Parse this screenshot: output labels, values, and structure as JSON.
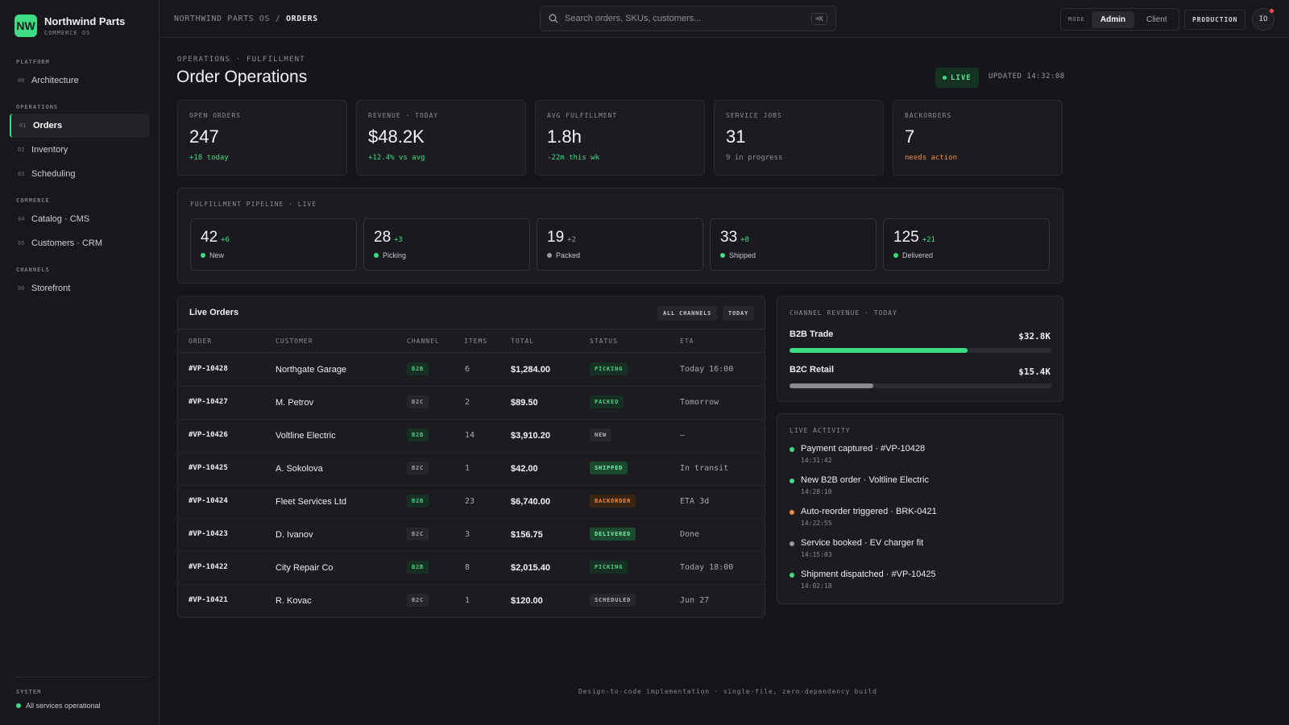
{
  "brand": {
    "initials": "NW",
    "name": "Northwind Parts",
    "subtitle": "COMMERCE OS"
  },
  "sidebar": {
    "sections": [
      {
        "label": "PLATFORM",
        "items": [
          {
            "num": "00",
            "label": "Architecture"
          }
        ]
      },
      {
        "label": "OPERATIONS",
        "items": [
          {
            "num": "01",
            "label": "Orders",
            "active": true
          },
          {
            "num": "02",
            "label": "Inventory"
          },
          {
            "num": "03",
            "label": "Scheduling"
          }
        ]
      },
      {
        "label": "COMMERCE",
        "items": [
          {
            "num": "04",
            "label": "Catalog · CMS"
          },
          {
            "num": "05",
            "label": "Customers · CRM"
          }
        ]
      },
      {
        "label": "CHANNELS",
        "items": [
          {
            "num": "06",
            "label": "Storefront"
          }
        ]
      }
    ],
    "system_label": "SYSTEM",
    "system_status": "All services operational"
  },
  "topbar": {
    "crumb_root": "NORTHWIND PARTS OS",
    "crumb_sep": "/",
    "crumb_current": "ORDERS",
    "search_placeholder": "Search orders, SKUs, customers...",
    "search_shortcut": "⌘K",
    "mode_label": "MODE",
    "mode_options": [
      "Admin",
      "Client"
    ],
    "env": "PRODUCTION",
    "avatar": "IO"
  },
  "page": {
    "eyebrow": "OPERATIONS · FULFILLMENT",
    "title": "Order Operations",
    "live": "LIVE",
    "updated": "UPDATED 14:32:08"
  },
  "kpis": [
    {
      "label": "OPEN ORDERS",
      "value": "247",
      "note": "+18 today",
      "tone": "green"
    },
    {
      "label": "REVENUE · TODAY",
      "value": "$48.2K",
      "note": "+12.4% vs avg",
      "tone": "green"
    },
    {
      "label": "AVG FULFILLMENT",
      "value": "1.8h",
      "note": "-22m this wk",
      "tone": "green"
    },
    {
      "label": "SERVICE JOBS",
      "value": "31",
      "note": "9 in progress",
      "tone": "muted"
    },
    {
      "label": "BACKORDERS",
      "value": "7",
      "note": "needs action",
      "tone": "orange"
    }
  ],
  "pipeline": {
    "title": "FULFILLMENT PIPELINE · LIVE",
    "stages": [
      {
        "value": "42",
        "delta": "+6",
        "label": "New",
        "color": "#3ddc84"
      },
      {
        "value": "28",
        "delta": "+3",
        "label": "Picking",
        "color": "#3ddc84"
      },
      {
        "value": "19",
        "delta": "+2",
        "label": "Packed",
        "color": "#9a9aa2"
      },
      {
        "value": "33",
        "delta": "+8",
        "label": "Shipped",
        "color": "#3ddc84"
      },
      {
        "value": "125",
        "delta": "+21",
        "label": "Delivered",
        "color": "#3ddc84"
      }
    ]
  },
  "orders": {
    "title": "Live Orders",
    "filters": [
      "ALL CHANNELS",
      "TODAY"
    ],
    "columns": [
      "ORDER",
      "CUSTOMER",
      "CHANNEL",
      "ITEMS",
      "TOTAL",
      "STATUS",
      "ETA"
    ],
    "rows": [
      {
        "id": "#VP-10428",
        "customer": "Northgate Garage",
        "channel": "B2B",
        "items": "6",
        "total": "$1,284.00",
        "status": "PICKING",
        "eta": "Today 16:00"
      },
      {
        "id": "#VP-10427",
        "customer": "M. Petrov",
        "channel": "B2C",
        "items": "2",
        "total": "$89.50",
        "status": "PACKED",
        "eta": "Tomorrow"
      },
      {
        "id": "#VP-10426",
        "customer": "Voltline Electric",
        "channel": "B2B",
        "items": "14",
        "total": "$3,910.20",
        "status": "NEW",
        "eta": "—"
      },
      {
        "id": "#VP-10425",
        "customer": "A. Sokolova",
        "channel": "B2C",
        "items": "1",
        "total": "$42.00",
        "status": "SHIPPED",
        "eta": "In transit"
      },
      {
        "id": "#VP-10424",
        "customer": "Fleet Services Ltd",
        "channel": "B2B",
        "items": "23",
        "total": "$6,740.00",
        "status": "BACKORDER",
        "eta": "ETA 3d"
      },
      {
        "id": "#VP-10423",
        "customer": "D. Ivanov",
        "channel": "B2C",
        "items": "3",
        "total": "$156.75",
        "status": "DELIVERED",
        "eta": "Done"
      },
      {
        "id": "#VP-10422",
        "customer": "City Repair Co",
        "channel": "B2B",
        "items": "8",
        "total": "$2,015.40",
        "status": "PICKING",
        "eta": "Today 18:00"
      },
      {
        "id": "#VP-10421",
        "customer": "R. Kovac",
        "channel": "B2C",
        "items": "1",
        "total": "$120.00",
        "status": "SCHEDULED",
        "eta": "Jun 27"
      }
    ]
  },
  "channel_revenue": {
    "title": "CHANNEL REVENUE · TODAY",
    "channels": [
      {
        "name": "B2B Trade",
        "value": "$32.8K",
        "share": 0.68,
        "color": "#3ddc84"
      },
      {
        "name": "B2C Retail",
        "value": "$15.4K",
        "share": 0.32,
        "color": "#8a8a92"
      }
    ]
  },
  "activity": {
    "title": "LIVE ACTIVITY",
    "items": [
      {
        "text": "Payment captured · #VP-10428",
        "time": "14:31:42",
        "color": "#3ddc84"
      },
      {
        "text": "New B2B order · Voltline Electric",
        "time": "14:28:10",
        "color": "#3ddc84"
      },
      {
        "text": "Auto-reorder triggered · BRK-0421",
        "time": "14:22:55",
        "color": "#f0883e"
      },
      {
        "text": "Service booked · EV charger fit",
        "time": "14:15:03",
        "color": "#9a9aa2"
      },
      {
        "text": "Shipment dispatched · #VP-10425",
        "time": "14:02:18",
        "color": "#3ddc84"
      }
    ]
  },
  "footer": "Design-to-code implementation · single-file, zero-dependency build",
  "colors": {
    "accent": "#3ddc84",
    "warning": "#f0883e",
    "background": "#16161a"
  }
}
